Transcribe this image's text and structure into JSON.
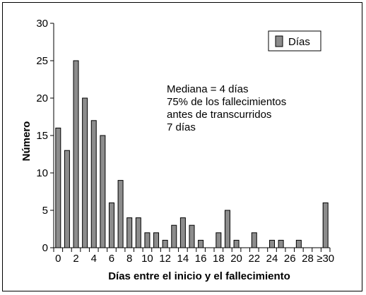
{
  "chart_data": {
    "type": "bar",
    "xlabel": "Días entre el inicio y el fallecimiento",
    "ylabel": "Número",
    "ylim": [
      0,
      30
    ],
    "yticks": [
      0,
      5,
      10,
      15,
      20,
      25,
      30
    ],
    "xtick_labels": [
      "0",
      "2",
      "4",
      "6",
      "8",
      "10",
      "12",
      "14",
      "16",
      "18",
      "20",
      "22",
      "24",
      "26",
      "28",
      "≥30"
    ],
    "legend": {
      "label": "Días",
      "position": "top-right"
    },
    "bar_color": "#8c8c8c",
    "annotation": [
      "Mediana = 4 días",
      "75% de los fallecimientos",
      "antes de transcurridos",
      "7 días"
    ],
    "categories": [
      "0",
      "1",
      "2",
      "3",
      "4",
      "5",
      "6",
      "7",
      "8",
      "9",
      "10",
      "11",
      "12",
      "13",
      "14",
      "15",
      "16",
      "17",
      "18",
      "19",
      "20",
      "21",
      "22",
      "23",
      "24",
      "25",
      "26",
      "27",
      "28",
      "29",
      "≥30"
    ],
    "values": [
      16,
      13,
      25,
      20,
      17,
      15,
      6,
      9,
      4,
      4,
      2,
      2,
      1,
      3,
      4,
      3,
      1,
      0,
      2,
      5,
      1,
      0,
      2,
      0,
      1,
      1,
      0,
      1,
      0,
      0,
      6
    ]
  }
}
